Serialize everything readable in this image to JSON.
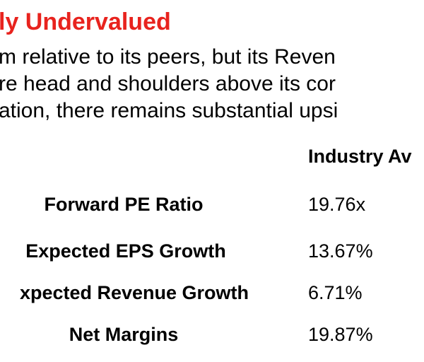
{
  "heading": {
    "text": "ly Undervalued",
    "color": "#e8231e"
  },
  "paragraph": {
    "lines": [
      "m relative to its peers, but its Reven",
      "re head and shoulders above its cor",
      "ation, there remains substantial upsi"
    ]
  },
  "table": {
    "column_header": "Industry Av",
    "rows": [
      {
        "metric": "Forward PE Ratio",
        "value": "19.76x"
      },
      {
        "metric": "Expected EPS Growth",
        "value": "13.67%"
      },
      {
        "metric": "xpected Revenue Growth",
        "value": "6.71%"
      },
      {
        "metric": "Net Margins",
        "value": "19.87%"
      }
    ]
  }
}
